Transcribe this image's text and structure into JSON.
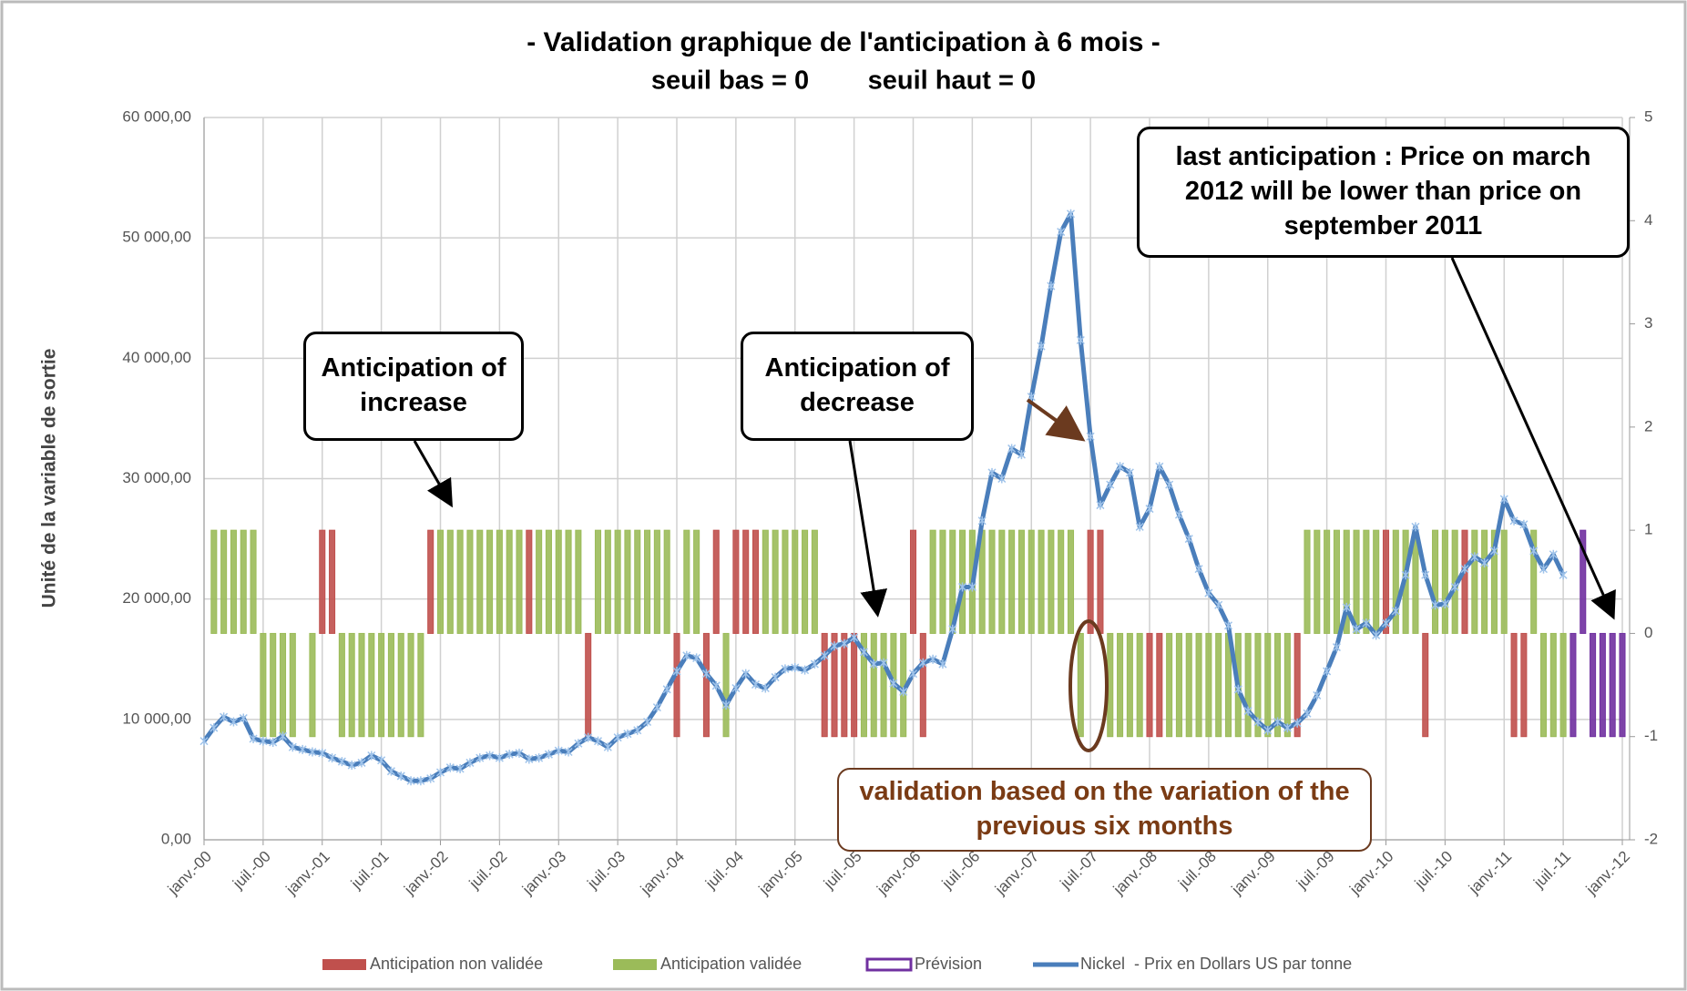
{
  "chart_data": {
    "type": "combo",
    "title": "- Validation graphique de l'anticipation à 6 mois -",
    "subtitle": "seuil bas = 0        seuil haut = 0",
    "y_label": "Unité de la variable de sortie",
    "grid": true,
    "categories": [
      "janv.-00",
      null,
      null,
      null,
      null,
      null,
      "juil.-00",
      null,
      null,
      null,
      null,
      null,
      "janv.-01",
      null,
      null,
      null,
      null,
      null,
      "juil.-01",
      null,
      null,
      null,
      null,
      null,
      "janv.-02",
      null,
      null,
      null,
      null,
      null,
      "juil.-02",
      null,
      null,
      null,
      null,
      null,
      "janv.-03",
      null,
      null,
      null,
      null,
      null,
      "juil.-03",
      null,
      null,
      null,
      null,
      null,
      "janv.-04",
      null,
      null,
      null,
      null,
      null,
      "juil.-04",
      null,
      null,
      null,
      null,
      null,
      "janv.-05",
      null,
      null,
      null,
      null,
      null,
      "juil.-05",
      null,
      null,
      null,
      null,
      null,
      "janv.-06",
      null,
      null,
      null,
      null,
      null,
      "juil.-06",
      null,
      null,
      null,
      null,
      null,
      "janv.-07",
      null,
      null,
      null,
      null,
      null,
      "juil.-07",
      null,
      null,
      null,
      null,
      null,
      "janv.-08",
      null,
      null,
      null,
      null,
      null,
      "juil.-08",
      null,
      null,
      null,
      null,
      null,
      "janv.-09",
      null,
      null,
      null,
      null,
      null,
      "juil.-09",
      null,
      null,
      null,
      null,
      null,
      "janv.-10",
      null,
      null,
      null,
      null,
      null,
      "juil.-10",
      null,
      null,
      null,
      null,
      null,
      "janv.-11",
      null,
      null,
      null,
      null,
      null,
      "juil.-11",
      null,
      null,
      null,
      null,
      null,
      "janv.-12"
    ],
    "ylim": [
      0,
      60000
    ],
    "yticks": [
      {
        "value": 0,
        "label": "0,00"
      },
      {
        "value": 10000,
        "label": "10 000,00"
      },
      {
        "value": 20000,
        "label": "20 000,00"
      },
      {
        "value": 30000,
        "label": "30 000,00"
      },
      {
        "value": 40000,
        "label": "40 000,00"
      },
      {
        "value": 50000,
        "label": "50 000,00"
      },
      {
        "value": 60000,
        "label": "60 000,00"
      }
    ],
    "y2lim": [
      -2,
      5
    ],
    "y2ticks": [
      -2,
      -1,
      0,
      1,
      2,
      3,
      4,
      5
    ],
    "series": [
      {
        "name": "Anticipation non validée",
        "type": "bar",
        "axis": "y2",
        "color": "#c0504d",
        "values": [
          null,
          null,
          null,
          null,
          null,
          null,
          null,
          null,
          null,
          null,
          null,
          null,
          1,
          1,
          null,
          null,
          null,
          null,
          null,
          null,
          null,
          null,
          null,
          1,
          null,
          null,
          null,
          null,
          null,
          null,
          null,
          null,
          null,
          1,
          null,
          null,
          null,
          null,
          null,
          -1,
          null,
          null,
          null,
          null,
          null,
          null,
          null,
          null,
          -1,
          null,
          null,
          -1,
          1,
          null,
          1,
          1,
          1,
          null,
          null,
          null,
          null,
          null,
          null,
          -1,
          -1,
          -1,
          -1,
          null,
          null,
          null,
          null,
          null,
          1,
          -1,
          null,
          null,
          null,
          null,
          null,
          null,
          null,
          null,
          null,
          null,
          null,
          null,
          null,
          null,
          null,
          null,
          1,
          1,
          null,
          null,
          null,
          null,
          -1,
          -1,
          null,
          null,
          null,
          null,
          null,
          null,
          null,
          null,
          null,
          null,
          null,
          null,
          null,
          -1,
          null,
          null,
          null,
          null,
          null,
          null,
          null,
          null,
          1,
          null,
          null,
          null,
          -1,
          null,
          null,
          null,
          1,
          null,
          null,
          null,
          null,
          -1,
          -1,
          null,
          null,
          null,
          null,
          null,
          null,
          null,
          null,
          null,
          null
        ]
      },
      {
        "name": "Anticipation validée",
        "type": "bar",
        "axis": "y2",
        "color": "#9bbb59",
        "values": [
          null,
          1,
          1,
          1,
          1,
          1,
          -1,
          -1,
          -1,
          -1,
          null,
          -1,
          null,
          null,
          -1,
          -1,
          -1,
          -1,
          -1,
          -1,
          -1,
          -1,
          -1,
          null,
          1,
          1,
          1,
          1,
          1,
          1,
          1,
          1,
          1,
          null,
          1,
          1,
          1,
          1,
          1,
          null,
          1,
          1,
          1,
          1,
          1,
          1,
          1,
          1,
          null,
          1,
          1,
          null,
          null,
          -1,
          null,
          null,
          null,
          1,
          1,
          1,
          1,
          1,
          1,
          null,
          null,
          null,
          null,
          -1,
          -1,
          -1,
          -1,
          -1,
          null,
          null,
          1,
          1,
          1,
          1,
          1,
          1,
          1,
          1,
          1,
          1,
          1,
          1,
          1,
          1,
          1,
          -1,
          null,
          null,
          -1,
          -1,
          -1,
          -1,
          null,
          null,
          -1,
          -1,
          -1,
          -1,
          -1,
          -1,
          -1,
          -1,
          -1,
          -1,
          -1,
          -1,
          -1,
          null,
          1,
          1,
          1,
          1,
          1,
          1,
          1,
          1,
          null,
          1,
          1,
          1,
          null,
          1,
          1,
          1,
          null,
          1,
          1,
          1,
          1,
          null,
          null,
          1,
          -1,
          -1,
          -1,
          null,
          null,
          null,
          null,
          null,
          null
        ]
      },
      {
        "name": "Prévision",
        "type": "bar",
        "axis": "y2",
        "color": "#7030a0",
        "values": [
          null,
          null,
          null,
          null,
          null,
          null,
          null,
          null,
          null,
          null,
          null,
          null,
          null,
          null,
          null,
          null,
          null,
          null,
          null,
          null,
          null,
          null,
          null,
          null,
          null,
          null,
          null,
          null,
          null,
          null,
          null,
          null,
          null,
          null,
          null,
          null,
          null,
          null,
          null,
          null,
          null,
          null,
          null,
          null,
          null,
          null,
          null,
          null,
          null,
          null,
          null,
          null,
          null,
          null,
          null,
          null,
          null,
          null,
          null,
          null,
          null,
          null,
          null,
          null,
          null,
          null,
          null,
          null,
          null,
          null,
          null,
          null,
          null,
          null,
          null,
          null,
          null,
          null,
          null,
          null,
          null,
          null,
          null,
          null,
          null,
          null,
          null,
          null,
          null,
          null,
          null,
          null,
          null,
          null,
          null,
          null,
          null,
          null,
          null,
          null,
          null,
          null,
          null,
          null,
          null,
          null,
          null,
          null,
          null,
          null,
          null,
          null,
          null,
          null,
          null,
          null,
          null,
          null,
          null,
          null,
          null,
          null,
          null,
          null,
          null,
          null,
          null,
          null,
          null,
          null,
          null,
          null,
          null,
          null,
          null,
          null,
          null,
          null,
          null,
          -1,
          1,
          -1,
          -1,
          -1,
          -1
        ]
      },
      {
        "name": "Nickel  - Prix en Dollars US par tonne",
        "type": "line",
        "color": "#4a7ebb",
        "values": [
          8200,
          9300,
          10200,
          9800,
          10100,
          8400,
          8200,
          8100,
          8600,
          7700,
          7500,
          7300,
          7200,
          6800,
          6500,
          6200,
          6400,
          7000,
          6600,
          5700,
          5300,
          4900,
          4900,
          5100,
          5600,
          6000,
          5900,
          6400,
          6800,
          7000,
          6800,
          7100,
          7200,
          6700,
          6800,
          7100,
          7400,
          7300,
          8000,
          8500,
          8200,
          7700,
          8500,
          8800,
          9100,
          9800,
          11000,
          12500,
          14000,
          15300,
          15100,
          13800,
          12800,
          11200,
          12600,
          13800,
          12900,
          12600,
          13500,
          14200,
          14300,
          14100,
          14600,
          15300,
          16100,
          16300,
          16800,
          15600,
          14600,
          14700,
          13000,
          12300,
          13800,
          14700,
          15000,
          14600,
          17500,
          21000,
          21000,
          26500,
          30500,
          30000,
          32500,
          32000,
          36800,
          41000,
          46000,
          50500,
          52000,
          41500,
          33500,
          27800,
          29500,
          31000,
          30500,
          26000,
          27500,
          31000,
          29500,
          27000,
          25000,
          22500,
          20500,
          19500,
          17800,
          12500,
          10700,
          9800,
          9100,
          9800,
          9300,
          9700,
          10500,
          12000,
          14000,
          16000,
          19300,
          17500,
          18000,
          17000,
          18000,
          19000,
          22000,
          26000,
          22000,
          19500,
          19600,
          21000,
          22500,
          23500,
          23000,
          24000,
          28300,
          26500,
          26200,
          24000,
          22500,
          23700,
          22000,
          null,
          null,
          null,
          null,
          null,
          null
        ]
      }
    ],
    "annotations": [
      {
        "text": "Anticipation of increase"
      },
      {
        "text": "Anticipation of decrease"
      },
      {
        "text": "last anticipation : Price on march 2012 will be lower than price on september 2011"
      },
      {
        "text": "validation based on the variation of the previous six months"
      }
    ]
  }
}
